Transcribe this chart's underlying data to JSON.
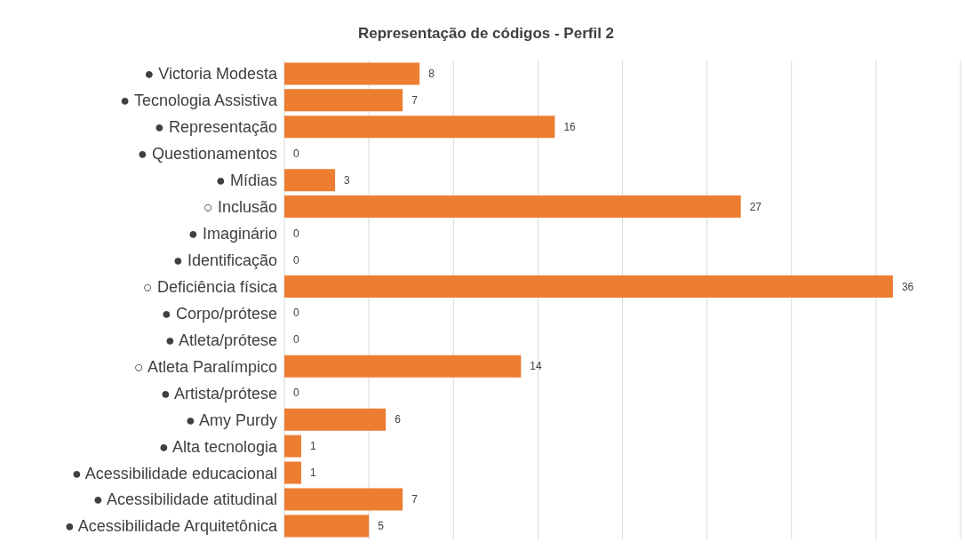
{
  "chart_data": {
    "type": "bar",
    "orientation": "horizontal",
    "title": "Representação de códigos - Perfil 2",
    "categories": [
      "● Victoria Modesta",
      "● Tecnologia Assistiva",
      "● Representação",
      "● Questionamentos",
      "● Mídias",
      "○ Inclusão",
      "● Imaginário",
      "● Identificação",
      "○ Deficiência física",
      "● Corpo/prótese",
      "● Atleta/prótese",
      "○ Atleta Paralímpico",
      "● Artista/prótese",
      "● Amy Purdy",
      "● Alta tecnologia",
      "● Acessibilidade educacional",
      "● Acessibilidade atitudinal",
      "● Acessibilidade Arquitetônica"
    ],
    "values": [
      8,
      7,
      16,
      0,
      3,
      27,
      0,
      0,
      36,
      0,
      0,
      14,
      0,
      6,
      1,
      1,
      7,
      5
    ],
    "color": "#ed7d31",
    "xlim": [
      0,
      40
    ],
    "grid": "x",
    "tick_labels": "y",
    "data_labels": true,
    "legend": false
  }
}
